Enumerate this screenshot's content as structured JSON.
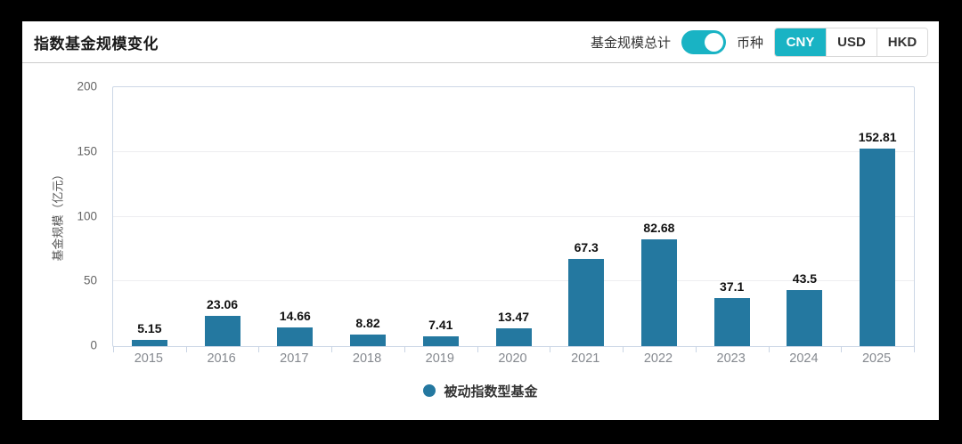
{
  "header": {
    "title": "指数基金规模变化",
    "toggle_label": "基金规模总计",
    "toggle_state": "on",
    "currency_label": "币种",
    "currency_options": [
      "CNY",
      "USD",
      "HKD"
    ],
    "selected_currency": "CNY"
  },
  "chart_data": {
    "type": "bar",
    "title": "指数基金规模变化",
    "categories": [
      "2015",
      "2016",
      "2017",
      "2018",
      "2019",
      "2020",
      "2021",
      "2022",
      "2023",
      "2024",
      "2025"
    ],
    "values": [
      5.15,
      23.06,
      14.66,
      8.82,
      7.41,
      13.47,
      67.3,
      82.68,
      37.1,
      43.5,
      152.81
    ],
    "value_labels": [
      "5.15",
      "23.06",
      "14.66",
      "8.82",
      "7.41",
      "13.47",
      "67.3",
      "82.68",
      "37.1",
      "43.5",
      "152.81"
    ],
    "series_name": "被动指数型基金",
    "xlabel": "",
    "ylabel": "基金规模（亿元）",
    "ylim": [
      0,
      200
    ],
    "yticks": [
      0,
      50,
      100,
      150,
      200
    ],
    "grid": true,
    "legend_position": "bottom"
  },
  "colors": {
    "bar": "#2478a0",
    "accent_teal": "#19b3c4",
    "plot_border": "#ccd7e6",
    "gridline": "#ededf0"
  }
}
